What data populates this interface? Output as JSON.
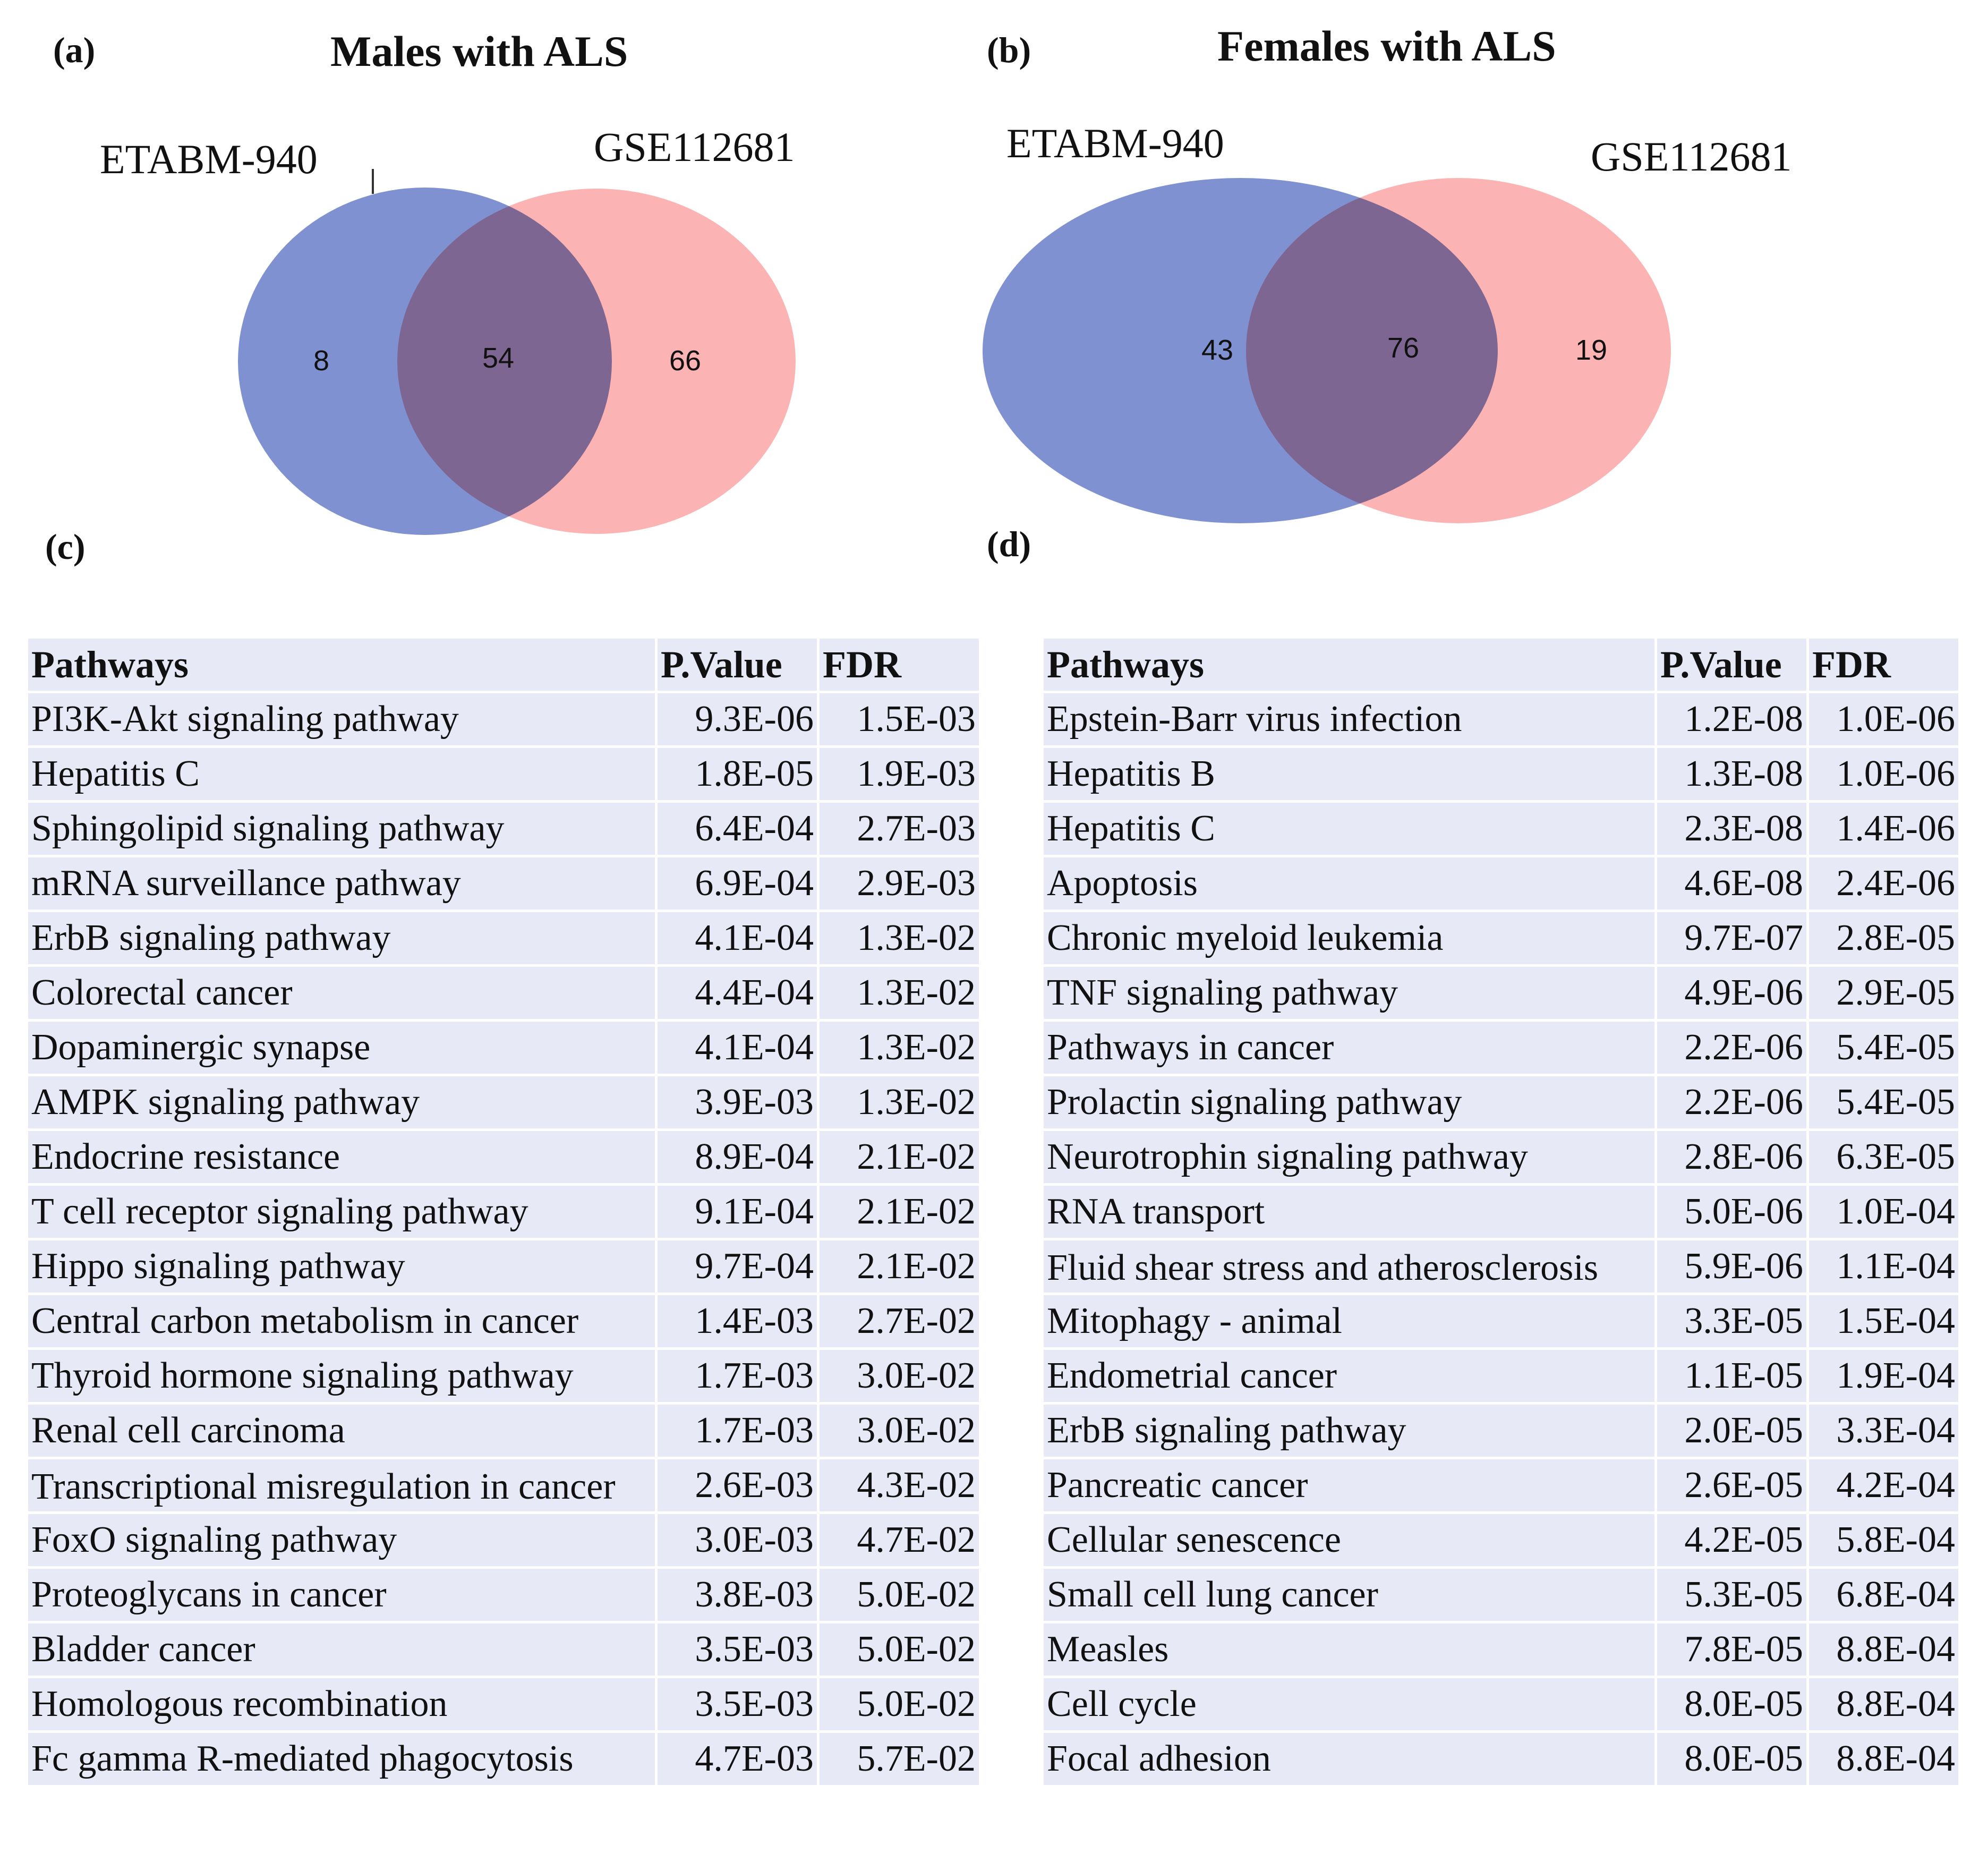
{
  "panels": {
    "a": {
      "label": "(a)",
      "title": "Males with ALS",
      "left_set": "ETABM-940",
      "right_set": "GSE112681",
      "left_only": "8",
      "overlap": "54",
      "right_only": "66"
    },
    "b": {
      "label": "(b)",
      "title": "Females with ALS",
      "left_set": "ETABM-940",
      "right_set": "GSE112681",
      "left_only": "43",
      "overlap": "76",
      "right_only": "19"
    },
    "c": {
      "label": "(c)"
    },
    "d": {
      "label": "(d)"
    }
  },
  "colors": {
    "blue_set": "#7488cc",
    "red_set": "#f98484",
    "overlap": "#c44a6c",
    "table_row": "#e7e9f6"
  },
  "table_c": {
    "headers": [
      "Pathways",
      "P.Value",
      "FDR"
    ],
    "rows": [
      [
        "PI3K-Akt signaling  pathway",
        "9.3E-06",
        "1.5E-03"
      ],
      [
        "Hepatitis C",
        "1.8E-05",
        "1.9E-03"
      ],
      [
        "Sphingolipid  signaling  pathway",
        "6.4E-04",
        "2.7E-03"
      ],
      [
        "mRNA surveillance pathway",
        "6.9E-04",
        "2.9E-03"
      ],
      [
        "ErbB signaling  pathway",
        "4.1E-04",
        "1.3E-02"
      ],
      [
        "Colorectal cancer",
        "4.4E-04",
        "1.3E-02"
      ],
      [
        "Dopaminergic synapse",
        "4.1E-04",
        "1.3E-02"
      ],
      [
        "AMPK signaling pathway",
        "3.9E-03",
        "1.3E-02"
      ],
      [
        "Endocrine resistance",
        "8.9E-04",
        "2.1E-02"
      ],
      [
        "T cell receptor signaling  pathway",
        "9.1E-04",
        "2.1E-02"
      ],
      [
        "Hippo signaling  pathway",
        "9.7E-04",
        "2.1E-02"
      ],
      [
        "Central carbon metabolism  in cancer",
        "1.4E-03",
        "2.7E-02"
      ],
      [
        "Thyroid hormone signaling  pathway",
        "1.7E-03",
        "3.0E-02"
      ],
      [
        "Renal cell carcinoma",
        "1.7E-03",
        "3.0E-02"
      ],
      [
        "Transcriptional misregulation  in cancer",
        "2.6E-03",
        "4.3E-02"
      ],
      [
        "FoxO signaling  pathway",
        "3.0E-03",
        "4.7E-02"
      ],
      [
        "Proteoglycans in cancer",
        "3.8E-03",
        "5.0E-02"
      ],
      [
        "Bladder cancer",
        "3.5E-03",
        "5.0E-02"
      ],
      [
        "Homologous  recombination",
        "3.5E-03",
        "5.0E-02"
      ],
      [
        "Fc gamma R-mediated phagocytosis",
        "4.7E-03",
        "5.7E-02"
      ]
    ]
  },
  "table_d": {
    "headers": [
      "Pathways",
      "P.Value",
      "FDR"
    ],
    "rows": [
      [
        "Epstein-Barr virus infection",
        "1.2E-08",
        "1.0E-06"
      ],
      [
        "Hepatitis B",
        "1.3E-08",
        "1.0E-06"
      ],
      [
        "Hepatitis C",
        "2.3E-08",
        "1.4E-06"
      ],
      [
        "Apoptosis",
        "4.6E-08",
        "2.4E-06"
      ],
      [
        "Chronic myeloid leukemia",
        "9.7E-07",
        "2.8E-05"
      ],
      [
        "TNF signaling  pathway",
        "4.9E-06",
        "2.9E-05"
      ],
      [
        "Pathways in cancer",
        "2.2E-06",
        "5.4E-05"
      ],
      [
        "Prolactin signaling  pathway",
        "2.2E-06",
        "5.4E-05"
      ],
      [
        "Neurotrophin signaling  pathway",
        "2.8E-06",
        "6.3E-05"
      ],
      [
        "RNA transport",
        "5.0E-06",
        "1.0E-04"
      ],
      [
        "Fluid  shear stress and atherosclerosis",
        "5.9E-06",
        "1.1E-04"
      ],
      [
        "Mitophagy  - animal",
        "3.3E-05",
        "1.5E-04"
      ],
      [
        "Endometrial  cancer",
        "1.1E-05",
        "1.9E-04"
      ],
      [
        "ErbB signaling  pathway",
        "2.0E-05",
        "3.3E-04"
      ],
      [
        "Pancreatic cancer",
        "2.6E-05",
        "4.2E-04"
      ],
      [
        "Cellular  senescence",
        "4.2E-05",
        "5.8E-04"
      ],
      [
        "Small  cell lung  cancer",
        "5.3E-05",
        "6.8E-04"
      ],
      [
        "Measles",
        "7.8E-05",
        "8.8E-04"
      ],
      [
        "Cell cycle",
        "8.0E-05",
        "8.8E-04"
      ],
      [
        "Focal adhesion",
        "8.0E-05",
        "8.8E-04"
      ]
    ]
  }
}
